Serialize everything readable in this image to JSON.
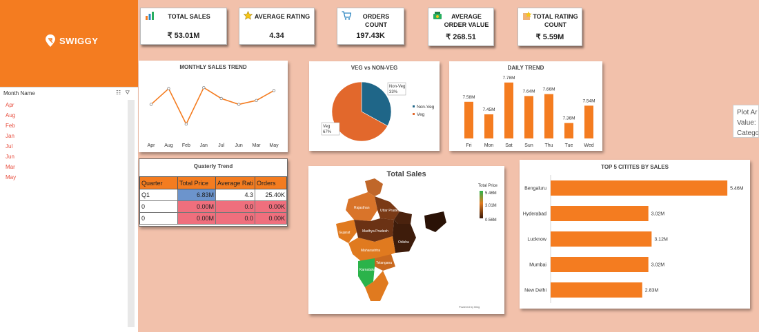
{
  "brand": {
    "name": "SWIGGY",
    "color": "#f47c20"
  },
  "slicer": {
    "header": "Month Name",
    "tools": "☷ ⛛",
    "items": [
      "Apr",
      "Aug",
      "Feb",
      "Jan",
      "Jul",
      "Jun",
      "Mar",
      "May"
    ]
  },
  "kpis": [
    {
      "title": "TOTAL SALES",
      "value": "₹ 53.01M",
      "icon": "chart-icon"
    },
    {
      "title": "AVERAGE RATING",
      "value": "4.34",
      "icon": "star-icon"
    },
    {
      "title": "ORDERS COUNT",
      "value": "197.43K",
      "icon": "cart-icon"
    },
    {
      "title": "AVERAGE ORDER VALUE",
      "value": "₹ 268.51",
      "icon": "money-icon"
    },
    {
      "title": "TOTAL RATING COUNT",
      "value": "₹ 5.59M",
      "icon": "rating-icon"
    }
  ],
  "tooltip": {
    "line1": "Plot Ar",
    "line2": "Value: ",
    "line3": "Catego"
  },
  "chart_data": [
    {
      "id": "monthly",
      "type": "line",
      "title": "MONTHLY SALES TREND",
      "categories": [
        "Apr",
        "Aug",
        "Feb",
        "Jan",
        "Jul",
        "Jun",
        "Mar",
        "May"
      ],
      "values": [
        6.55,
        7.35,
        5.55,
        7.4,
        6.85,
        6.55,
        6.75,
        7.25
      ],
      "ylim": [
        5.0,
        8.0
      ],
      "color": "#f47c20"
    },
    {
      "id": "vegnonveg",
      "type": "pie",
      "title": "VEG vs NON-VEG",
      "slices": [
        {
          "name": "Non-Veg",
          "value": 33,
          "label": "Non-Veg\n33%",
          "color": "#1f6688"
        },
        {
          "name": "Veg",
          "value": 67,
          "label": "Veg\n67%",
          "color": "#e2682c"
        }
      ],
      "legend": "right"
    },
    {
      "id": "daily",
      "type": "bar",
      "title": "DAILY TREND",
      "categories": [
        "Fri",
        "Mon",
        "Sat",
        "Sun",
        "Thu",
        "Tue",
        "Wed"
      ],
      "values": [
        7.58,
        7.45,
        7.78,
        7.64,
        7.66,
        7.36,
        7.54
      ],
      "data_labels": [
        "7.58M",
        "7.45M",
        "7.78M",
        "7.64M",
        "7.66M",
        "7.36M",
        "7.54M"
      ],
      "ylim": [
        7.2,
        7.8
      ],
      "color": "#f47c20"
    },
    {
      "id": "quarterly",
      "type": "table",
      "title": "Quaterly Trend",
      "columns": [
        "Quarter",
        "Total Price",
        "Average Rati",
        "Orders"
      ],
      "rows": [
        [
          "Q1",
          "6.83M",
          "4.3",
          "25.40K"
        ],
        [
          "0",
          "0.00M",
          "0.0",
          "0.00K"
        ],
        [
          "0",
          "0.00M",
          "0.0",
          "0.00K"
        ]
      ]
    },
    {
      "id": "map",
      "type": "heatmap",
      "title": "Total Sales",
      "legend_title": "Total Price",
      "legend_ticks": [
        "5.46M",
        "3.01M",
        "0.56M"
      ],
      "colors": [
        "#2bb34a",
        "#e07a1f",
        "#3a1a0a"
      ],
      "regions": [
        "Rajasthan",
        "Madhya Pradesh",
        "Uttar Pradesh",
        "Maharashtra",
        "Odisha",
        "Karnataka",
        "Telangana",
        "Gujarat"
      ],
      "credit": "Powered by Bing"
    },
    {
      "id": "topcities",
      "type": "bar",
      "title": "TOP 5 CITITES BY SALES",
      "categories": [
        "Bengaluru",
        "Hyderabad",
        "Lucknow",
        "Mumbai",
        "New Delhi"
      ],
      "values": [
        5.46,
        3.02,
        3.12,
        3.02,
        2.83
      ],
      "data_labels": [
        "5.46M",
        "3.02M",
        "3.12M",
        "3.02M",
        "2.83M"
      ],
      "xlim": [
        0,
        5.5
      ],
      "color": "#f47c20"
    }
  ]
}
